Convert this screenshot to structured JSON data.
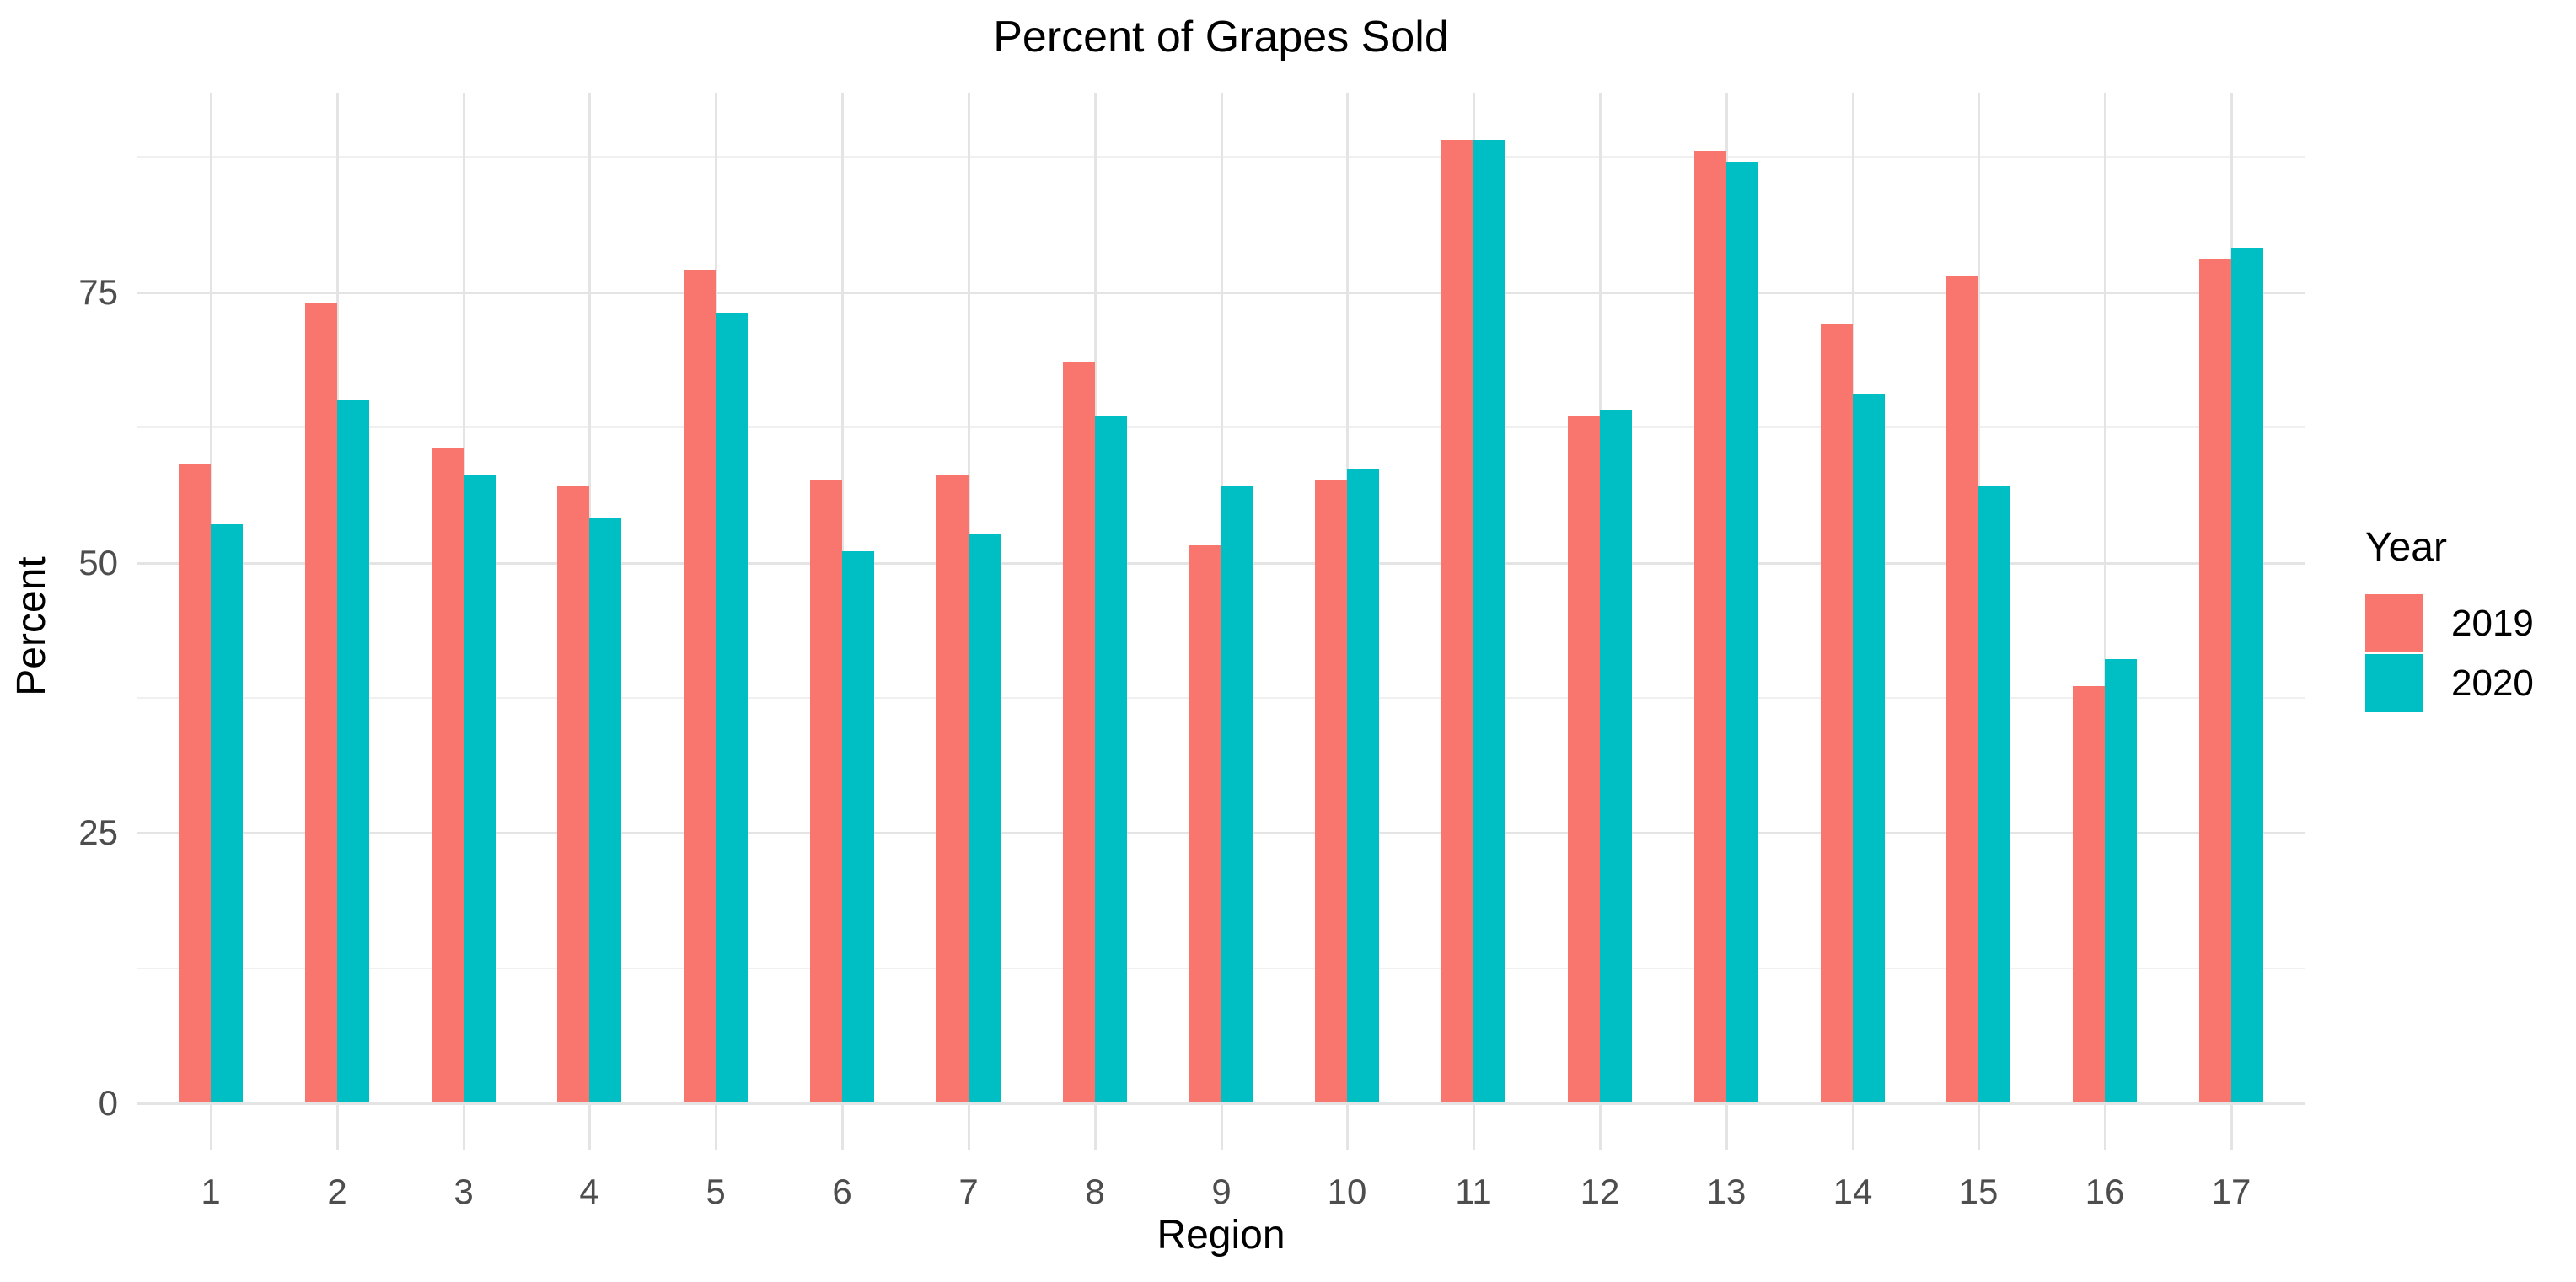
{
  "title": "Percent of Grapes Sold",
  "axes": {
    "x_title": "Region",
    "y_title": "Percent",
    "y_tick_labels": [
      "0",
      "25",
      "50",
      "75"
    ],
    "y_tick_values": [
      0,
      25,
      50,
      75
    ],
    "y_minor_values": [
      12.5,
      37.5,
      62.5,
      87.5
    ],
    "x_tick_labels": [
      "1",
      "2",
      "3",
      "4",
      "5",
      "6",
      "7",
      "8",
      "9",
      "10",
      "11",
      "12",
      "13",
      "14",
      "15",
      "16",
      "17"
    ]
  },
  "legend": {
    "title": "Year",
    "items": [
      {
        "label": "2019",
        "color": "#F8766D"
      },
      {
        "label": "2020",
        "color": "#00BFC4"
      }
    ]
  },
  "colors": {
    "series_2019": "#F8766D",
    "series_2020": "#00BFC4",
    "grid_major": "#E4E4E4",
    "grid_minor": "#F0F0F0",
    "axis_text": "#4D4D4D",
    "title_text": "#000000",
    "background": "#FFFFFF"
  },
  "chart_data": {
    "type": "bar",
    "title": "Percent of Grapes Sold",
    "xlabel": "Region",
    "ylabel": "Percent",
    "ylim": [
      0,
      93
    ],
    "grid": true,
    "legend_position": "right",
    "categories": [
      1,
      2,
      3,
      4,
      5,
      6,
      7,
      8,
      9,
      10,
      11,
      12,
      13,
      14,
      15,
      16,
      17
    ],
    "series": [
      {
        "name": "2019",
        "color": "#F8766D",
        "values": [
          59,
          74,
          60.5,
          57,
          77,
          57.5,
          58,
          68.5,
          51.5,
          57.5,
          89,
          63.5,
          88,
          72,
          76.5,
          38.5,
          78
        ]
      },
      {
        "name": "2020",
        "color": "#00BFC4",
        "values": [
          53.5,
          65,
          58,
          54,
          73,
          51,
          52.5,
          63.5,
          57,
          58.5,
          89,
          64,
          87,
          65.5,
          57,
          41,
          79
        ]
      }
    ]
  }
}
